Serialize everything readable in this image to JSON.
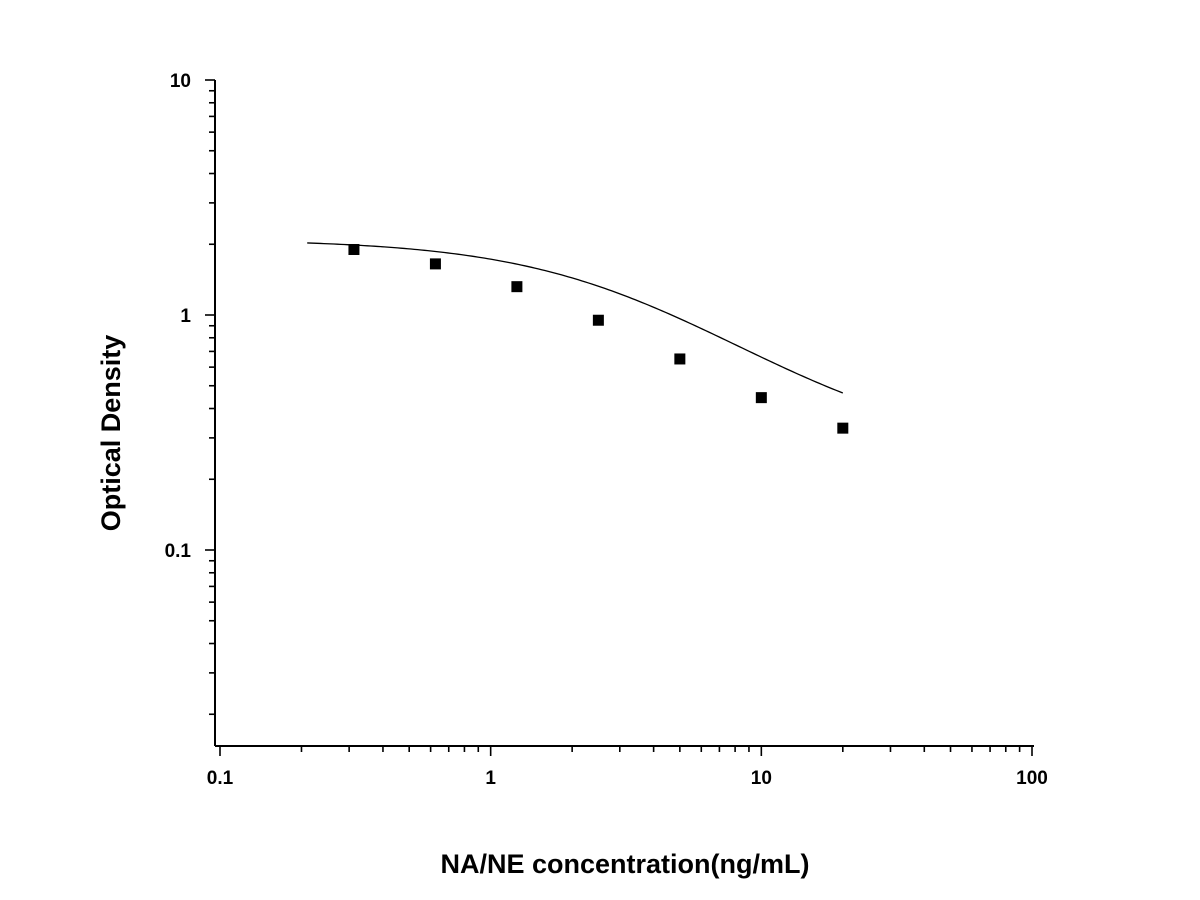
{
  "chart_data": {
    "type": "scatter",
    "xlabel": "NA/NE concentration(ng/mL)",
    "ylabel": "Optical Density",
    "xscale": "log",
    "yscale": "log",
    "xlim": [
      0.1,
      100
    ],
    "ylim": [
      0.02,
      10
    ],
    "x_tick_labels": [
      "0.1",
      "1",
      "10",
      "100"
    ],
    "y_tick_labels": [
      "10",
      "1",
      "0.1"
    ],
    "grid": false,
    "legend": "none",
    "series": [
      {
        "marker": "square",
        "x": [
          0.3125,
          0.625,
          1.25,
          2.5,
          5,
          10,
          20
        ],
        "y": [
          1.9,
          1.65,
          1.32,
          0.95,
          0.65,
          0.445,
          0.33
        ]
      }
    ],
    "fit_curve": {
      "type": "4PL",
      "x_range": [
        0.21,
        20
      ],
      "top": 2.1,
      "bottom": 0.26,
      "ec50": 3.3,
      "hill": 1.15
    }
  }
}
